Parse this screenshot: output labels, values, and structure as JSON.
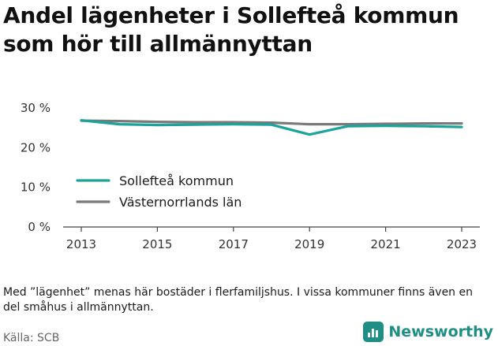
{
  "title": "Andel lägenheter i Sollefteå kommun som hör till allmännyttan",
  "note": "Med ”lägenhet” menas här bostäder i flerfamiljshus. I vissa kommuner finns även en del småhus i allmännyttan.",
  "source": "Källa: SCB",
  "brand": {
    "name": "Newsworthy",
    "icon": "newsworthy-logo-icon",
    "color": "#1f8f86"
  },
  "chart_data": {
    "type": "line",
    "x": [
      2013,
      2014,
      2015,
      2016,
      2017,
      2018,
      2019,
      2020,
      2021,
      2022,
      2023
    ],
    "x_ticks": [
      "2013",
      "2015",
      "2017",
      "2019",
      "2021",
      "2023"
    ],
    "y_ticks": [
      "0 %",
      "10 %",
      "20 %",
      "30 %"
    ],
    "ylim": [
      0,
      30
    ],
    "grid": false,
    "legend_position": "bottom-left",
    "series": [
      {
        "name": "Sollefteå kommun",
        "color": "#1ba39c",
        "values": [
          26.9,
          25.9,
          25.7,
          25.8,
          25.9,
          25.8,
          23.3,
          25.4,
          25.5,
          25.4,
          25.2
        ]
      },
      {
        "name": "Västernorrlands län",
        "color": "#7a7a7a",
        "values": [
          26.8,
          26.7,
          26.5,
          26.4,
          26.4,
          26.3,
          25.9,
          25.9,
          26.0,
          26.1,
          26.1
        ]
      }
    ]
  }
}
